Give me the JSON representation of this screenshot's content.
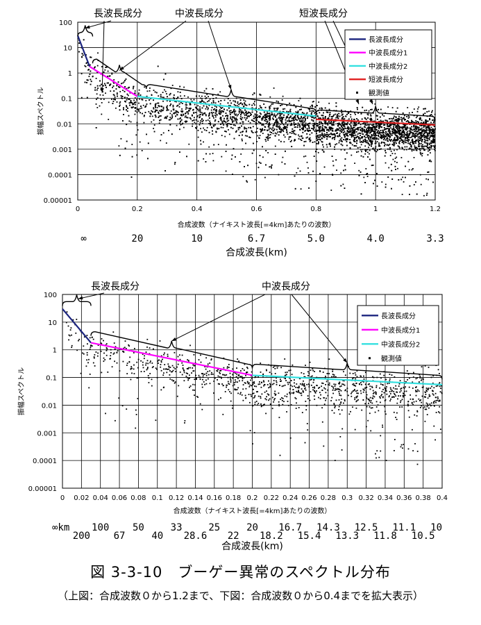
{
  "figure": {
    "title": "図 3-3-10　ブーゲー異常のスペクトル分布",
    "subtitle": "（上図：合成波数０から1.2まで、下図：合成波数０から0.4までを拡大表示）"
  },
  "colors": {
    "long": "#1a237e",
    "mid1": "#ff00ff",
    "mid2": "#33e0e0",
    "short": "#e02020",
    "points": "#000000",
    "grid": "#000000",
    "bracket": "#000000"
  },
  "chart_data": [
    {
      "type": "scatter",
      "ylabel": "振幅スペクトル",
      "xlabel": "合成波数（ナイキスト波長[=4km]あたりの波数）",
      "wavelength_label": "合成波長(km)",
      "y_scale": "log",
      "xlim": [
        0,
        1.2
      ],
      "ylim": [
        1e-05,
        100
      ],
      "x_ticks": [
        "0",
        "0.2",
        "0.4",
        "0.6",
        "0.8",
        "1",
        "1.2"
      ],
      "x_tick_values": [
        0,
        0.2,
        0.4,
        0.6,
        0.8,
        1.0,
        1.2
      ],
      "y_ticks": [
        "100",
        "10",
        "1",
        "0.1",
        "0.01",
        "0.001",
        "0.0001",
        "0.00001"
      ],
      "wavelength_ticks": [
        {
          "x": 0.02,
          "label": "∞"
        },
        {
          "x": 0.2,
          "label": "20"
        },
        {
          "x": 0.4,
          "label": "10"
        },
        {
          "x": 0.6,
          "label": "6.7"
        },
        {
          "x": 0.8,
          "label": "5.0"
        },
        {
          "x": 1.0,
          "label": "4.0"
        },
        {
          "x": 1.2,
          "label": "3.3"
        }
      ],
      "grid": true,
      "legend_position": "top-right",
      "legend": [
        "長波長成分",
        "中波長成分1",
        "中波長成分2",
        "短波長成分",
        "観測値"
      ],
      "annotations": [
        {
          "text": "長波長成分",
          "x_range": [
            0,
            0.05
          ]
        },
        {
          "text": "中波長成分",
          "x_range": [
            0.05,
            0.8
          ]
        },
        {
          "text": "短波長成分",
          "x_range": [
            0.8,
            1.2
          ]
        }
      ],
      "series": [
        {
          "name": "長波長成分",
          "key": "long",
          "x": [
            0,
            0.04
          ],
          "y": [
            30,
            1.8
          ]
        },
        {
          "name": "中波長成分1",
          "key": "mid1",
          "x": [
            0.04,
            0.2
          ],
          "y": [
            1.8,
            0.12
          ]
        },
        {
          "name": "中波長成分2",
          "key": "mid2",
          "x": [
            0.2,
            0.8
          ],
          "y": [
            0.12,
            0.02
          ]
        },
        {
          "name": "短波長成分",
          "key": "short",
          "x": [
            0.8,
            1.2
          ],
          "y": [
            0.015,
            0.009
          ]
        }
      ],
      "scatter_summary": {
        "name": "観測値",
        "count": 5000,
        "x_range": [
          0,
          1.2
        ],
        "trend": "decreasing"
      }
    },
    {
      "type": "scatter",
      "ylabel": "振幅スペクトル",
      "xlabel": "合成波数（ナイキスト波長[=4km]あたりの波数）",
      "wavelength_label": "合成波長(km)",
      "y_scale": "log",
      "xlim": [
        0,
        0.4
      ],
      "ylim": [
        1e-05,
        100
      ],
      "x_ticks": [
        "0",
        "0.02",
        "0.04",
        "0.06",
        "0.08",
        "0.1",
        "0.12",
        "0.14",
        "0.16",
        "0.18",
        "0.2",
        "0.22",
        "0.24",
        "0.26",
        "0.28",
        "0.3",
        "0.32",
        "0.34",
        "0.36",
        "0.38",
        "0.4"
      ],
      "x_tick_values": [
        0,
        0.02,
        0.04,
        0.06,
        0.08,
        0.1,
        0.12,
        0.14,
        0.16,
        0.18,
        0.2,
        0.22,
        0.24,
        0.26,
        0.28,
        0.3,
        0.32,
        0.34,
        0.36,
        0.38,
        0.4
      ],
      "y_ticks": [
        "100",
        "10",
        "1",
        "0.1",
        "0.01",
        "0.001",
        "0.0001",
        "0.00001"
      ],
      "wavelength_ticks_row1": [
        {
          "x": 0.0,
          "label": "∞km"
        },
        {
          "x": 0.04,
          "label": "100"
        },
        {
          "x": 0.08,
          "label": "50"
        },
        {
          "x": 0.12,
          "label": "33"
        },
        {
          "x": 0.16,
          "label": "25"
        },
        {
          "x": 0.2,
          "label": "20"
        },
        {
          "x": 0.24,
          "label": "16.7"
        },
        {
          "x": 0.28,
          "label": "14.3"
        },
        {
          "x": 0.32,
          "label": "12.5"
        },
        {
          "x": 0.36,
          "label": "11.1"
        },
        {
          "x": 0.4,
          "label": "10"
        }
      ],
      "wavelength_ticks_row2": [
        {
          "x": 0.02,
          "label": "200"
        },
        {
          "x": 0.06,
          "label": "67"
        },
        {
          "x": 0.1,
          "label": "40"
        },
        {
          "x": 0.14,
          "label": "28.6"
        },
        {
          "x": 0.18,
          "label": "22"
        },
        {
          "x": 0.22,
          "label": "18.2"
        },
        {
          "x": 0.26,
          "label": "15.4"
        },
        {
          "x": 0.3,
          "label": "13.3"
        },
        {
          "x": 0.34,
          "label": "11.8"
        },
        {
          "x": 0.38,
          "label": "10.5"
        }
      ],
      "grid": true,
      "legend_position": "top-right",
      "legend": [
        "長波長成分",
        "中波長成分1",
        "中波長成分2",
        "観測値"
      ],
      "annotations": [
        {
          "text": "長波長成分",
          "x_range": [
            0,
            0.03
          ]
        },
        {
          "text": "中波長成分",
          "x_range": [
            0.03,
            0.4
          ]
        }
      ],
      "series": [
        {
          "name": "長波長成分",
          "key": "long",
          "x": [
            0,
            0.03
          ],
          "y": [
            30,
            1.8
          ]
        },
        {
          "name": "中波長成分1",
          "key": "mid1",
          "x": [
            0.03,
            0.2
          ],
          "y": [
            1.8,
            0.12
          ]
        },
        {
          "name": "中波長成分2",
          "key": "mid2",
          "x": [
            0.2,
            0.4
          ],
          "y": [
            0.12,
            0.055
          ]
        }
      ],
      "scatter_summary": {
        "name": "観測値",
        "count": 1200,
        "x_range": [
          0,
          0.4
        ],
        "trend": "decreasing"
      }
    }
  ]
}
